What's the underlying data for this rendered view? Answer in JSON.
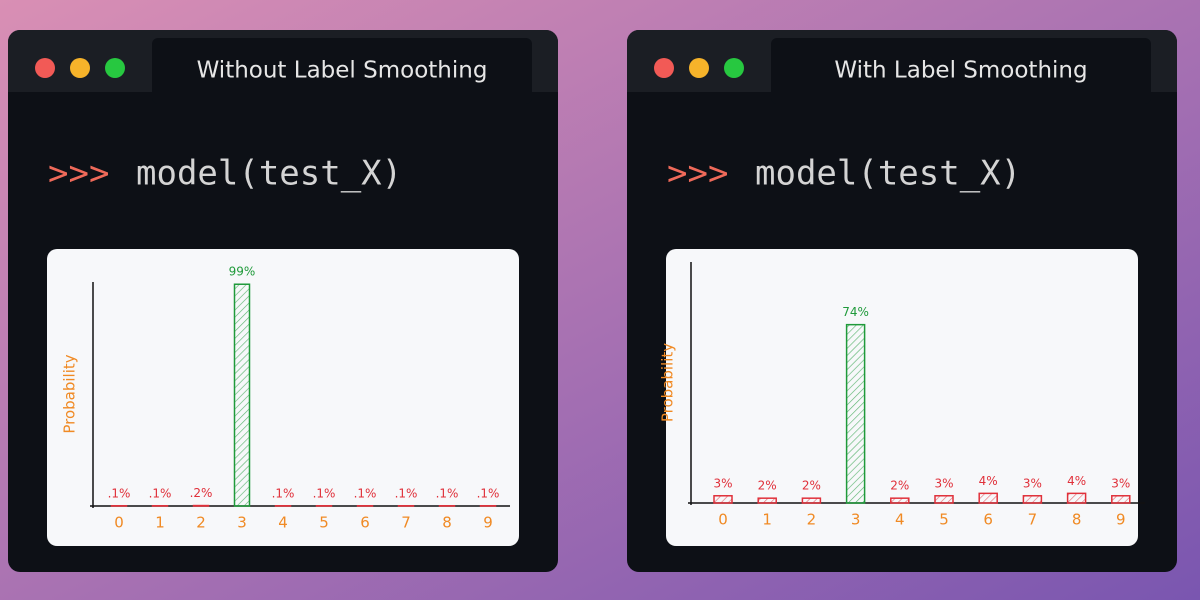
{
  "windows": [
    {
      "tab_title": "Without Label Smoothing",
      "prompt": ">>>",
      "command": "model(test_X)"
    },
    {
      "tab_title": "With Label Smoothing",
      "prompt": ">>>",
      "command": "model(test_X)"
    }
  ],
  "chart_data": [
    {
      "type": "bar",
      "y_label": "Probability",
      "categories": [
        "0",
        "1",
        "2",
        "3",
        "4",
        "5",
        "6",
        "7",
        "8",
        "9"
      ],
      "values": [
        0.1,
        0.1,
        0.2,
        99,
        0.1,
        0.1,
        0.1,
        0.1,
        0.1,
        0.1
      ],
      "value_labels": [
        ".1%",
        ".1%",
        ".2%",
        "99%",
        ".1%",
        ".1%",
        ".1%",
        ".1%",
        ".1%",
        ".1%"
      ],
      "colors": [
        "#e0303a",
        "#e0303a",
        "#e0303a",
        "#1f9a3a",
        "#e0303a",
        "#e0303a",
        "#e0303a",
        "#e0303a",
        "#e0303a",
        "#e0303a"
      ],
      "ylim": [
        0,
        100
      ]
    },
    {
      "type": "bar",
      "y_label": "Probability",
      "categories": [
        "0",
        "1",
        "2",
        "3",
        "4",
        "5",
        "6",
        "7",
        "8",
        "9"
      ],
      "values": [
        3,
        2,
        2,
        74,
        2,
        3,
        4,
        3,
        4,
        3
      ],
      "value_labels": [
        "3%",
        "2%",
        "2%",
        "74%",
        "2%",
        "3%",
        "4%",
        "3%",
        "4%",
        "3%"
      ],
      "colors": [
        "#e0303a",
        "#e0303a",
        "#e0303a",
        "#1f9a3a",
        "#e0303a",
        "#e0303a",
        "#e0303a",
        "#e0303a",
        "#e0303a",
        "#e0303a"
      ],
      "ylim": [
        0,
        100
      ]
    }
  ]
}
